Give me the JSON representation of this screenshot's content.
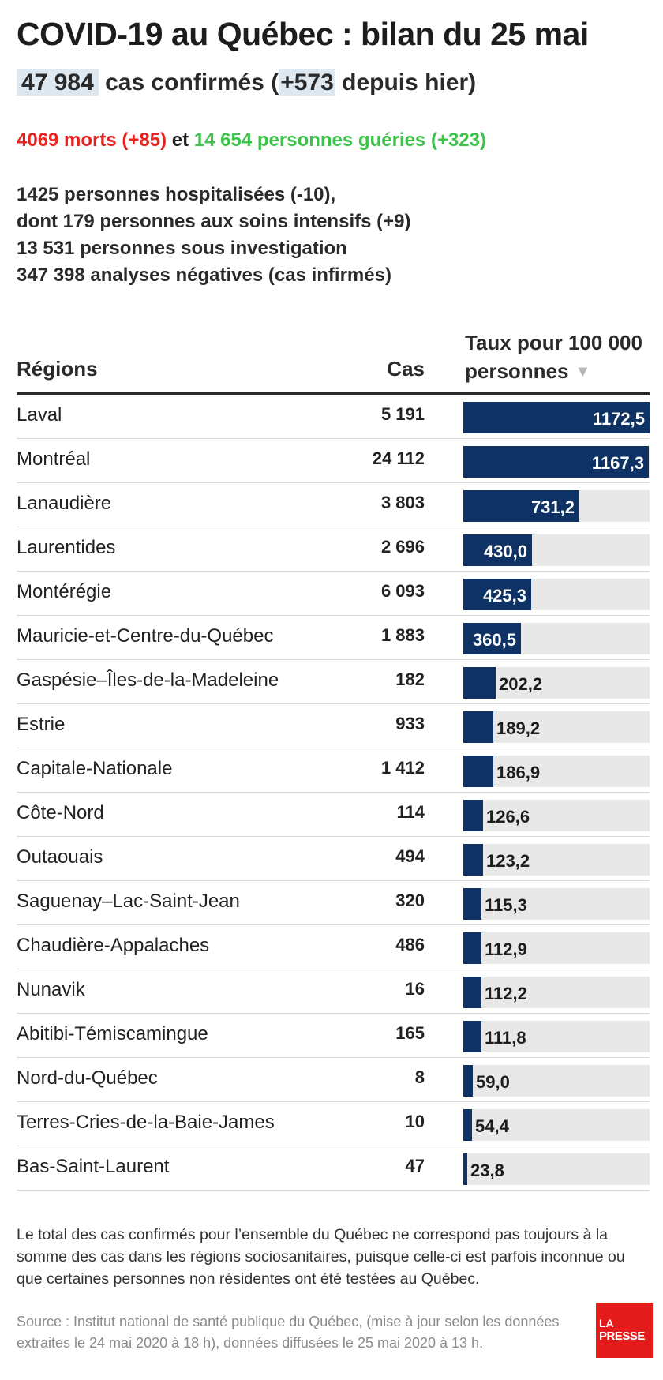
{
  "header": {
    "title": "COVID-19 au Québec : bilan du 25 mai",
    "cases_total": "47 984",
    "cases_label_a": " cas confirmés (",
    "cases_delta": "+573",
    "cases_label_b": " depuis hier)"
  },
  "summary": {
    "deaths": "4069 morts (+85)",
    "connector": " et ",
    "recovered": "14 654 personnes guéries (+323)"
  },
  "stats": [
    "1425 personnes hospitalisées (-10),",
    "dont 179 personnes aux soins intensifs (+9)",
    "13 531 personnes sous investigation",
    "347 398 analyses négatives (cas infirmés)"
  ],
  "table": {
    "col_regions": "Régions",
    "col_cas": "Cas",
    "col_rate_line1": "Taux pour 100 000",
    "col_rate_line2": "personnes",
    "sort_icon": "sort-descending-icon"
  },
  "chart_data": {
    "type": "bar",
    "orientation": "horizontal",
    "categories": [
      "Laval",
      "Montréal",
      "Lanaudière",
      "Laurentides",
      "Montérégie",
      "Mauricie-et-Centre-du-Québec",
      "Gaspésie–Îles-de-la-Madeleine",
      "Estrie",
      "Capitale-Nationale",
      "Côte-Nord",
      "Outaouais",
      "Saguenay–Lac-Saint-Jean",
      "Chaudière-Appalaches",
      "Nunavik",
      "Abitibi-Témiscamingue",
      "Nord-du-Québec",
      "Terres-Cries-de-la-Baie-James",
      "Bas-Saint-Laurent"
    ],
    "cases": [
      "5 191",
      "24 112",
      "3 803",
      "2 696",
      "6 093",
      "1 883",
      "182",
      "933",
      "1 412",
      "114",
      "494",
      "320",
      "486",
      "16",
      "165",
      "8",
      "10",
      "47"
    ],
    "values": [
      1172.5,
      1167.3,
      731.2,
      430.0,
      425.3,
      360.5,
      202.2,
      189.2,
      186.9,
      126.6,
      123.2,
      115.3,
      112.9,
      112.2,
      111.8,
      59.0,
      54.4,
      23.8
    ],
    "value_labels": [
      "1172,5",
      "1167,3",
      "731,2",
      "430,0",
      "425,3",
      "360,5",
      "202,2",
      "189,2",
      "186,9",
      "126,6",
      "123,2",
      "115,3",
      "112,9",
      "112,2",
      "111,8",
      "59,0",
      "54,4",
      "23,8"
    ],
    "xlim": [
      0,
      1172.5
    ],
    "bar_color": "#0d3263",
    "track_color": "#e8e8e8"
  },
  "footer": {
    "note": "Le total des cas confirmés pour l’ensemble du Québec ne correspond pas toujours à la somme des cas dans les régions sociosanitaires, puisque celle-ci est parfois inconnue ou que certaines personnes non résidentes ont été testées au Québec.",
    "source": "Source : Institut national de santé publique du Québec, (mise à jour selon les données extraites le 24 mai 2020 à 18 h), données diffusées le 25 mai 2020 à 13 h.",
    "logo_line1": "LA",
    "logo_line2": "PRESSE"
  },
  "colors": {
    "deaths": "#e8221f",
    "recovered": "#3cc34a",
    "highlight": "#dde8f1",
    "logo": "#e41b1b"
  }
}
